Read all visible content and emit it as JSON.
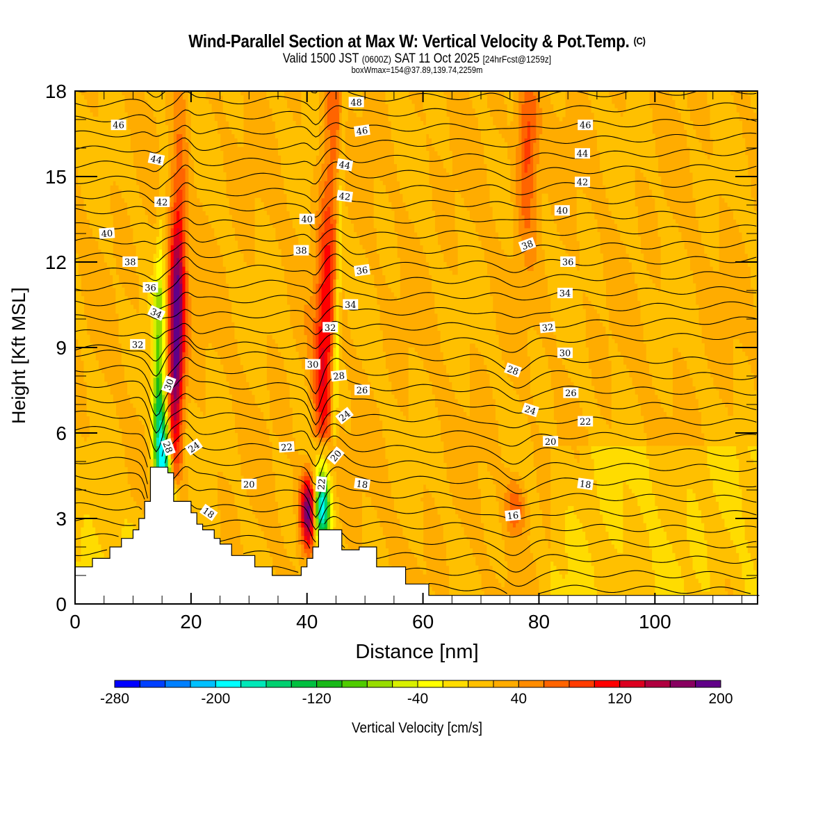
{
  "header": {
    "title": "Wind-Parallel Section at Max W: Vertical Velocity & Pot.Temp.",
    "copyright": "(C)",
    "valid_prefix": "Valid 1500 JST",
    "valid_utc": "(0600Z)",
    "valid_date": "SAT 11 Oct 2025",
    "forecast": "[24hrFcst@1259z]",
    "boxinfo": "boxWmax=154@37.89,139.74,2259m"
  },
  "chart_data": {
    "type": "heatmap",
    "title": "Wind-Parallel Section at Max W: Vertical Velocity & Pot.Temp.",
    "xlabel": "Distance [nm]",
    "ylabel": "Height [Kft MSL]",
    "xlim": [
      0,
      117.7
    ],
    "ylim": [
      0,
      18
    ],
    "x_ticks": [
      "0",
      "20",
      "40",
      "60",
      "80",
      "100"
    ],
    "x_tick_values": [
      0,
      20,
      40,
      60,
      80,
      100
    ],
    "y_ticks": [
      "0",
      "3",
      "6",
      "9",
      "12",
      "15",
      "18"
    ],
    "y_tick_values": [
      0,
      3,
      6,
      9,
      12,
      15,
      18
    ],
    "colorbar": {
      "label": "Vertical Velocity [cm/s]",
      "min": -280,
      "max": 200,
      "step": 20,
      "tick_labels": [
        "-280",
        "-200",
        "-120",
        "-40",
        "40",
        "120",
        "200"
      ],
      "tick_values": [
        -280,
        -200,
        -120,
        -40,
        40,
        120,
        200
      ],
      "colors": [
        "#0000ff",
        "#0040ff",
        "#0080ff",
        "#00c0ff",
        "#00ffff",
        "#00e8b8",
        "#00d070",
        "#00c040",
        "#18b818",
        "#50cc00",
        "#98dc00",
        "#d8f000",
        "#ffff00",
        "#ffdc00",
        "#ffc000",
        "#ffac00",
        "#ff8c00",
        "#ff6400",
        "#ff3c00",
        "#ff0000",
        "#dc0020",
        "#b00040",
        "#880060",
        "#600088"
      ]
    },
    "background_velocity": 20,
    "velocity_features": [
      {
        "name": "updraft-left",
        "x": 17.5,
        "y_range": [
          4.5,
          18
        ],
        "w_max": 190
      },
      {
        "name": "downdraft-left",
        "x": 15.5,
        "y_range": [
          3.5,
          11
        ],
        "w_min": -240
      },
      {
        "name": "updraft-mid",
        "x": 40.3,
        "y_range": [
          1.8,
          5.4
        ],
        "w_max": 180
      },
      {
        "name": "downdraft-mid",
        "x": 42.5,
        "y_range": [
          1.8,
          5
        ],
        "w_min": -220
      },
      {
        "name": "updraft-mid-upper",
        "x": 43.5,
        "y_range": [
          6,
          18
        ],
        "w_max": 100
      },
      {
        "name": "updraft-right",
        "x": 78,
        "y_range": [
          11,
          18
        ],
        "w_max": 80
      },
      {
        "name": "updraft-right-low",
        "x": 76,
        "y_range": [
          2.5,
          5
        ],
        "w_max": 60
      }
    ],
    "terrain": {
      "x": [
        0,
        3,
        3,
        6,
        6,
        8,
        8,
        10,
        10,
        11,
        11,
        12,
        12,
        13,
        13,
        16,
        16,
        17,
        17,
        18,
        18,
        20,
        20,
        21,
        21,
        22,
        22,
        24,
        24,
        25,
        25,
        27,
        27,
        31,
        31,
        34,
        34,
        38,
        38,
        39,
        39,
        40,
        40,
        41,
        41,
        42,
        42,
        43,
        43,
        46,
        46,
        47,
        47,
        49,
        49,
        52,
        52,
        57,
        57,
        61,
        61,
        66,
        66,
        118
      ],
      "y": [
        1.3,
        1.3,
        1.6,
        1.6,
        2.0,
        2.0,
        2.3,
        2.3,
        2.6,
        2.6,
        3.0,
        3.0,
        3.6,
        3.6,
        4.8,
        4.8,
        4.6,
        4.6,
        3.6,
        3.6,
        3.6,
        3.6,
        3.2,
        3.2,
        2.8,
        2.8,
        2.6,
        2.6,
        2.3,
        2.3,
        2.1,
        2.1,
        1.7,
        1.7,
        1.3,
        1.3,
        1.0,
        1.0,
        1.0,
        1.0,
        1.3,
        1.3,
        1.6,
        1.6,
        2.0,
        2.0,
        2.6,
        2.6,
        2.6,
        2.6,
        1.9,
        1.9,
        1.9,
        1.9,
        2.0,
        2.0,
        1.3,
        1.3,
        0.7,
        0.7,
        0.3,
        0.3,
        0.3,
        0.3
      ]
    },
    "contours": {
      "label": "Potential Temperature",
      "levels": [
        15,
        16,
        17,
        18,
        19,
        20,
        21,
        22,
        23,
        24,
        25,
        26,
        27,
        28,
        29,
        30,
        31,
        32,
        33,
        34,
        35,
        36,
        37,
        38,
        39,
        40,
        41,
        42,
        43,
        44,
        45,
        46,
        47,
        48,
        49
      ],
      "labels": [
        {
          "text": "48",
          "x": 48.5,
          "y": 17.6,
          "angle": 0
        },
        {
          "text": "46",
          "x": 7.5,
          "y": 16.8,
          "angle": 0
        },
        {
          "text": "46",
          "x": 49.5,
          "y": 16.6,
          "angle": -8
        },
        {
          "text": "46",
          "x": 88,
          "y": 16.8,
          "angle": 0
        },
        {
          "text": "44",
          "x": 14,
          "y": 15.6,
          "angle": 12
        },
        {
          "text": "44",
          "x": 46.5,
          "y": 15.4,
          "angle": 10
        },
        {
          "text": "44",
          "x": 87.5,
          "y": 15.8,
          "angle": 0
        },
        {
          "text": "42",
          "x": 15,
          "y": 14.1,
          "angle": 0
        },
        {
          "text": "42",
          "x": 46.5,
          "y": 14.3,
          "angle": 8
        },
        {
          "text": "42",
          "x": 87.5,
          "y": 14.8,
          "angle": 0
        },
        {
          "text": "40",
          "x": 5.5,
          "y": 13.0,
          "angle": -4
        },
        {
          "text": "40",
          "x": 40,
          "y": 13.5,
          "angle": 0
        },
        {
          "text": "40",
          "x": 84,
          "y": 13.8,
          "angle": 0
        },
        {
          "text": "38",
          "x": 9.5,
          "y": 12.0,
          "angle": 0
        },
        {
          "text": "38",
          "x": 39,
          "y": 12.4,
          "angle": 0
        },
        {
          "text": "38",
          "x": 78,
          "y": 12.6,
          "angle": -20
        },
        {
          "text": "36",
          "x": 13,
          "y": 11.1,
          "angle": 0
        },
        {
          "text": "36",
          "x": 49.5,
          "y": 11.7,
          "angle": -8
        },
        {
          "text": "36",
          "x": 85,
          "y": 12.0,
          "angle": 0
        },
        {
          "text": "34",
          "x": 14,
          "y": 10.2,
          "angle": 25
        },
        {
          "text": "34",
          "x": 47.5,
          "y": 10.5,
          "angle": 0
        },
        {
          "text": "34",
          "x": 84.5,
          "y": 10.9,
          "angle": 0
        },
        {
          "text": "32",
          "x": 10.8,
          "y": 9.1,
          "angle": 0
        },
        {
          "text": "32",
          "x": 44,
          "y": 9.7,
          "angle": 0
        },
        {
          "text": "32",
          "x": 81.5,
          "y": 9.7,
          "angle": -6
        },
        {
          "text": "30",
          "x": 16.2,
          "y": 7.7,
          "angle": -70
        },
        {
          "text": "30",
          "x": 41,
          "y": 8.4,
          "angle": 0
        },
        {
          "text": "30",
          "x": 84.5,
          "y": 8.8,
          "angle": 0
        },
        {
          "text": "28",
          "x": 45.5,
          "y": 8.0,
          "angle": -6
        },
        {
          "text": "28",
          "x": 75.5,
          "y": 8.2,
          "angle": 20
        },
        {
          "text": "28",
          "x": 16,
          "y": 5.5,
          "angle": 70
        },
        {
          "text": "26",
          "x": 49.5,
          "y": 7.5,
          "angle": 0
        },
        {
          "text": "26",
          "x": 85.5,
          "y": 7.4,
          "angle": 0
        },
        {
          "text": "24",
          "x": 20.5,
          "y": 5.5,
          "angle": -35
        },
        {
          "text": "24",
          "x": 46.5,
          "y": 6.6,
          "angle": -38
        },
        {
          "text": "24",
          "x": 78.5,
          "y": 6.8,
          "angle": 18
        },
        {
          "text": "22",
          "x": 36.5,
          "y": 5.5,
          "angle": -4
        },
        {
          "text": "22",
          "x": 42.5,
          "y": 4.2,
          "angle": -85
        },
        {
          "text": "22",
          "x": 88,
          "y": 6.4,
          "angle": 0
        },
        {
          "text": "20",
          "x": 45,
          "y": 5.2,
          "angle": -50
        },
        {
          "text": "20",
          "x": 30,
          "y": 4.2,
          "angle": 0
        },
        {
          "text": "20",
          "x": 82,
          "y": 5.7,
          "angle": 0
        },
        {
          "text": "18",
          "x": 23,
          "y": 3.2,
          "angle": 35
        },
        {
          "text": "18",
          "x": 49.5,
          "y": 4.2,
          "angle": 8
        },
        {
          "text": "18",
          "x": 88,
          "y": 4.2,
          "angle": 8
        },
        {
          "text": "16",
          "x": 75.5,
          "y": 3.1,
          "angle": -6
        }
      ]
    }
  }
}
